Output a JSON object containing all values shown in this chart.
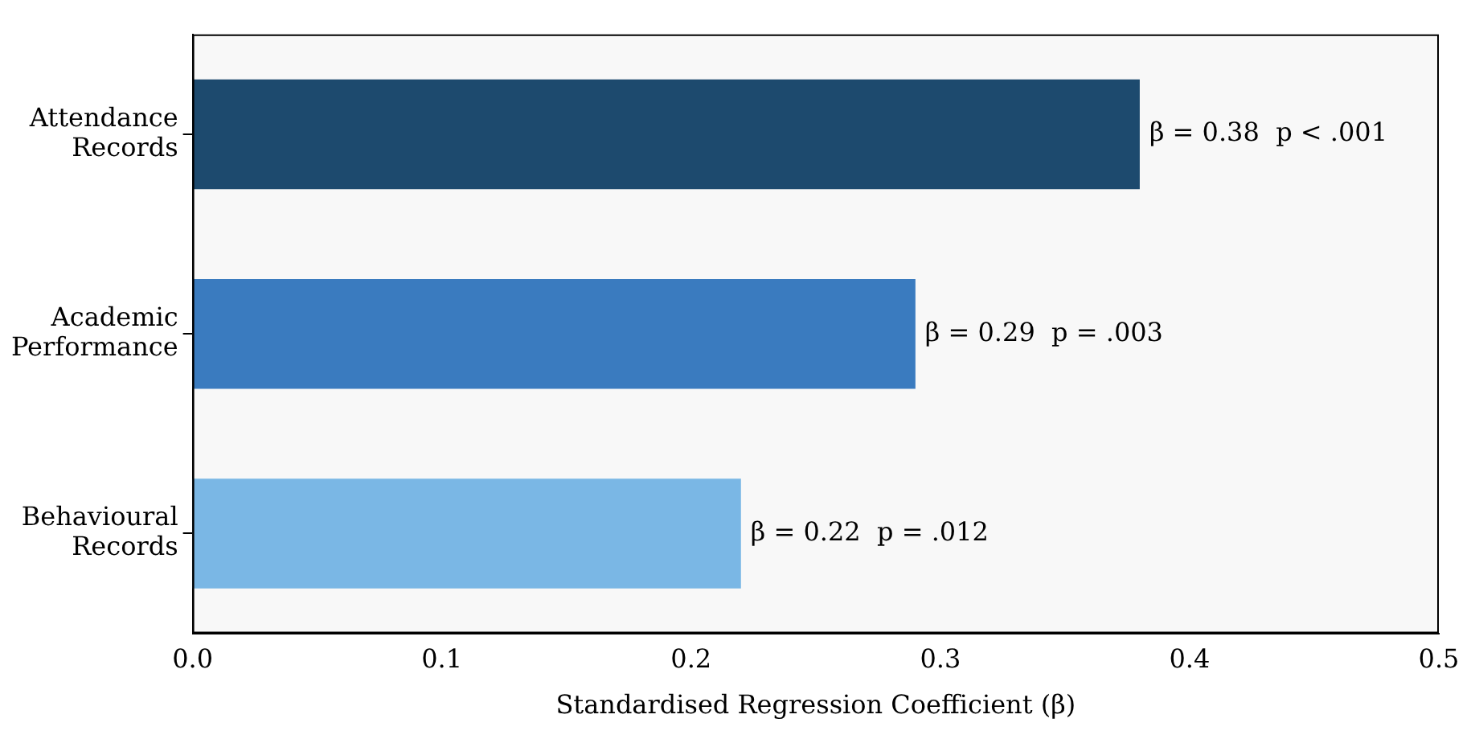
{
  "chart_data": {
    "type": "bar",
    "orientation": "horizontal",
    "xlabel": "Standardised Regression Coefficient (β)",
    "categories": [
      "Attendance Records",
      "Academic Performance",
      "Behavioural Records"
    ],
    "values": [
      0.38,
      0.29,
      0.22
    ],
    "colors": [
      "#1d4a6e",
      "#3a7bbf",
      "#7ab7e5"
    ],
    "value_labels": [
      "β = 0.38  p < .001",
      "β = 0.29  p = .003",
      "β = 0.22  p = .012"
    ],
    "xlim": [
      0,
      0.5
    ],
    "xticks": [
      {
        "value": 0,
        "label": "0.0"
      },
      {
        "value": 0.1,
        "label": "0.1"
      },
      {
        "value": 0.2,
        "label": "0.2"
      },
      {
        "value": 0.3,
        "label": "0.3"
      },
      {
        "value": 0.4,
        "label": "0.4"
      },
      {
        "value": 0.5,
        "label": "0.5"
      }
    ],
    "grid": false,
    "legend": false
  }
}
